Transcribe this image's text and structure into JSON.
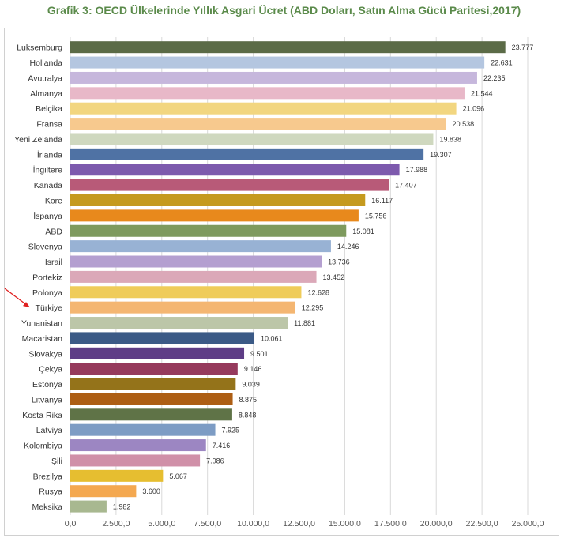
{
  "chart_data": {
    "type": "bar",
    "orientation": "horizontal",
    "title": "Grafik 3: OECD Ülkelerinde Yıllık Asgari Ücret (ABD Doları, Satın Alma Gücü Paritesi,2017)",
    "xlabel": "",
    "ylabel": "",
    "xlim": [
      0,
      25000
    ],
    "xticks": [
      "0,0",
      "2.500,0",
      "5.000,0",
      "7.500,0",
      "10.000,0",
      "12.500,0",
      "15.000,0",
      "17.500,0",
      "20.000,0",
      "22.500,0",
      "25.000,0"
    ],
    "grid": true,
    "highlighted": "Türkiye",
    "bars": [
      {
        "category": "Luksemburg",
        "value": 23777,
        "label": "23.777",
        "color": "#5b6b47"
      },
      {
        "category": "Hollanda",
        "value": 22631,
        "label": "22.631",
        "color": "#b4c6e0"
      },
      {
        "category": "Avutralya",
        "value": 22235,
        "label": "22.235",
        "color": "#c6b7dc"
      },
      {
        "category": "Almanya",
        "value": 21544,
        "label": "21.544",
        "color": "#e8b8c8"
      },
      {
        "category": "Belçika",
        "value": 21096,
        "label": "21.096",
        "color": "#f2d680"
      },
      {
        "category": "Fransa",
        "value": 20538,
        "label": "20.538",
        "color": "#f7c98e"
      },
      {
        "category": "Yeni Zelanda",
        "value": 19838,
        "label": "19.838",
        "color": "#cfd8bf"
      },
      {
        "category": "İrlanda",
        "value": 19307,
        "label": "19.307",
        "color": "#4f72a4"
      },
      {
        "category": "İngiltere",
        "value": 17988,
        "label": "17.988",
        "color": "#7d5aad"
      },
      {
        "category": "Kanada",
        "value": 17407,
        "label": "17.407",
        "color": "#b85a78"
      },
      {
        "category": "Kore",
        "value": 16117,
        "label": "16.117",
        "color": "#c59a1e"
      },
      {
        "category": "İspanya",
        "value": 15756,
        "label": "15.756",
        "color": "#e8891c"
      },
      {
        "category": "ABD",
        "value": 15081,
        "label": "15.081",
        "color": "#7e9a5e"
      },
      {
        "category": "Slovenya",
        "value": 14246,
        "label": "14.246",
        "color": "#98b2d4"
      },
      {
        "category": "İsrail",
        "value": 13736,
        "label": "13.736",
        "color": "#b49fd0"
      },
      {
        "category": "Portekiz",
        "value": 13452,
        "label": "13.452",
        "color": "#dba8b8"
      },
      {
        "category": "Polonya",
        "value": 12628,
        "label": "12.628",
        "color": "#efcc5a"
      },
      {
        "category": "Türkiye",
        "value": 12295,
        "label": "12.295",
        "color": "#f4b672"
      },
      {
        "category": "Yunanistan",
        "value": 11881,
        "label": "11.881",
        "color": "#bcc6a8"
      },
      {
        "category": "Macaristan",
        "value": 10061,
        "label": "10.061",
        "color": "#3b5a86"
      },
      {
        "category": "Slovakya",
        "value": 9501,
        "label": "9.501",
        "color": "#5e3d86"
      },
      {
        "category": "Çekya",
        "value": 9146,
        "label": "9.146",
        "color": "#963a5c"
      },
      {
        "category": "Estonya",
        "value": 9039,
        "label": "9.039",
        "color": "#94731a"
      },
      {
        "category": "Litvanya",
        "value": 8875,
        "label": "8.875",
        "color": "#ad5e14"
      },
      {
        "category": "Kosta Rika",
        "value": 8848,
        "label": "8.848",
        "color": "#5f7347"
      },
      {
        "category": "Latviya",
        "value": 7925,
        "label": "7.925",
        "color": "#7d9cc4"
      },
      {
        "category": "Kolombiya",
        "value": 7416,
        "label": "7.416",
        "color": "#9c86c2"
      },
      {
        "category": "Şili",
        "value": 7086,
        "label": "7.086",
        "color": "#d090a8"
      },
      {
        "category": "Brezilya",
        "value": 5067,
        "label": "5.067",
        "color": "#e6be30"
      },
      {
        "category": "Rusya",
        "value": 3600,
        "label": "3.600",
        "color": "#f4a850"
      },
      {
        "category": "Meksika",
        "value": 1982,
        "label": "1.982",
        "color": "#a8b890"
      }
    ]
  },
  "annotation": {
    "arrow_color": "#e02020",
    "target": "Türkiye"
  }
}
